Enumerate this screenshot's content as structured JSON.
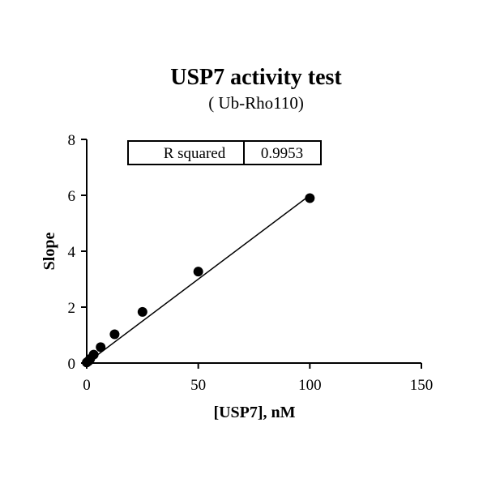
{
  "chart_data": {
    "type": "scatter",
    "title": "USP7 activity test",
    "subtitle": "( Ub-Rho110)",
    "xlabel": "[USP7], nM",
    "ylabel": "Slope",
    "xlim": [
      0,
      150
    ],
    "ylim": [
      0,
      8
    ],
    "x_ticks": [
      0,
      50,
      100,
      150
    ],
    "y_ticks": [
      0,
      2,
      4,
      6,
      8
    ],
    "x_tick_labels": [
      "0",
      "50",
      "100",
      "150"
    ],
    "y_tick_labels": [
      "0",
      "2",
      "4",
      "6",
      "8"
    ],
    "grid": false,
    "points": [
      {
        "x": 0,
        "y": 0.02
      },
      {
        "x": 0.78,
        "y": 0.07
      },
      {
        "x": 1.56,
        "y": 0.15
      },
      {
        "x": 3.125,
        "y": 0.3
      },
      {
        "x": 6.25,
        "y": 0.57
      },
      {
        "x": 12.5,
        "y": 1.03
      },
      {
        "x": 25,
        "y": 1.83
      },
      {
        "x": 50,
        "y": 3.27
      },
      {
        "x": 100,
        "y": 5.9
      }
    ],
    "fit_line": {
      "x": [
        0,
        100
      ],
      "y": [
        0,
        6.0
      ]
    },
    "stats_box": {
      "label": "R squared",
      "value": "0.9953"
    },
    "colors": {
      "points": "#000000",
      "line": "#000000",
      "axes": "#000000"
    }
  }
}
